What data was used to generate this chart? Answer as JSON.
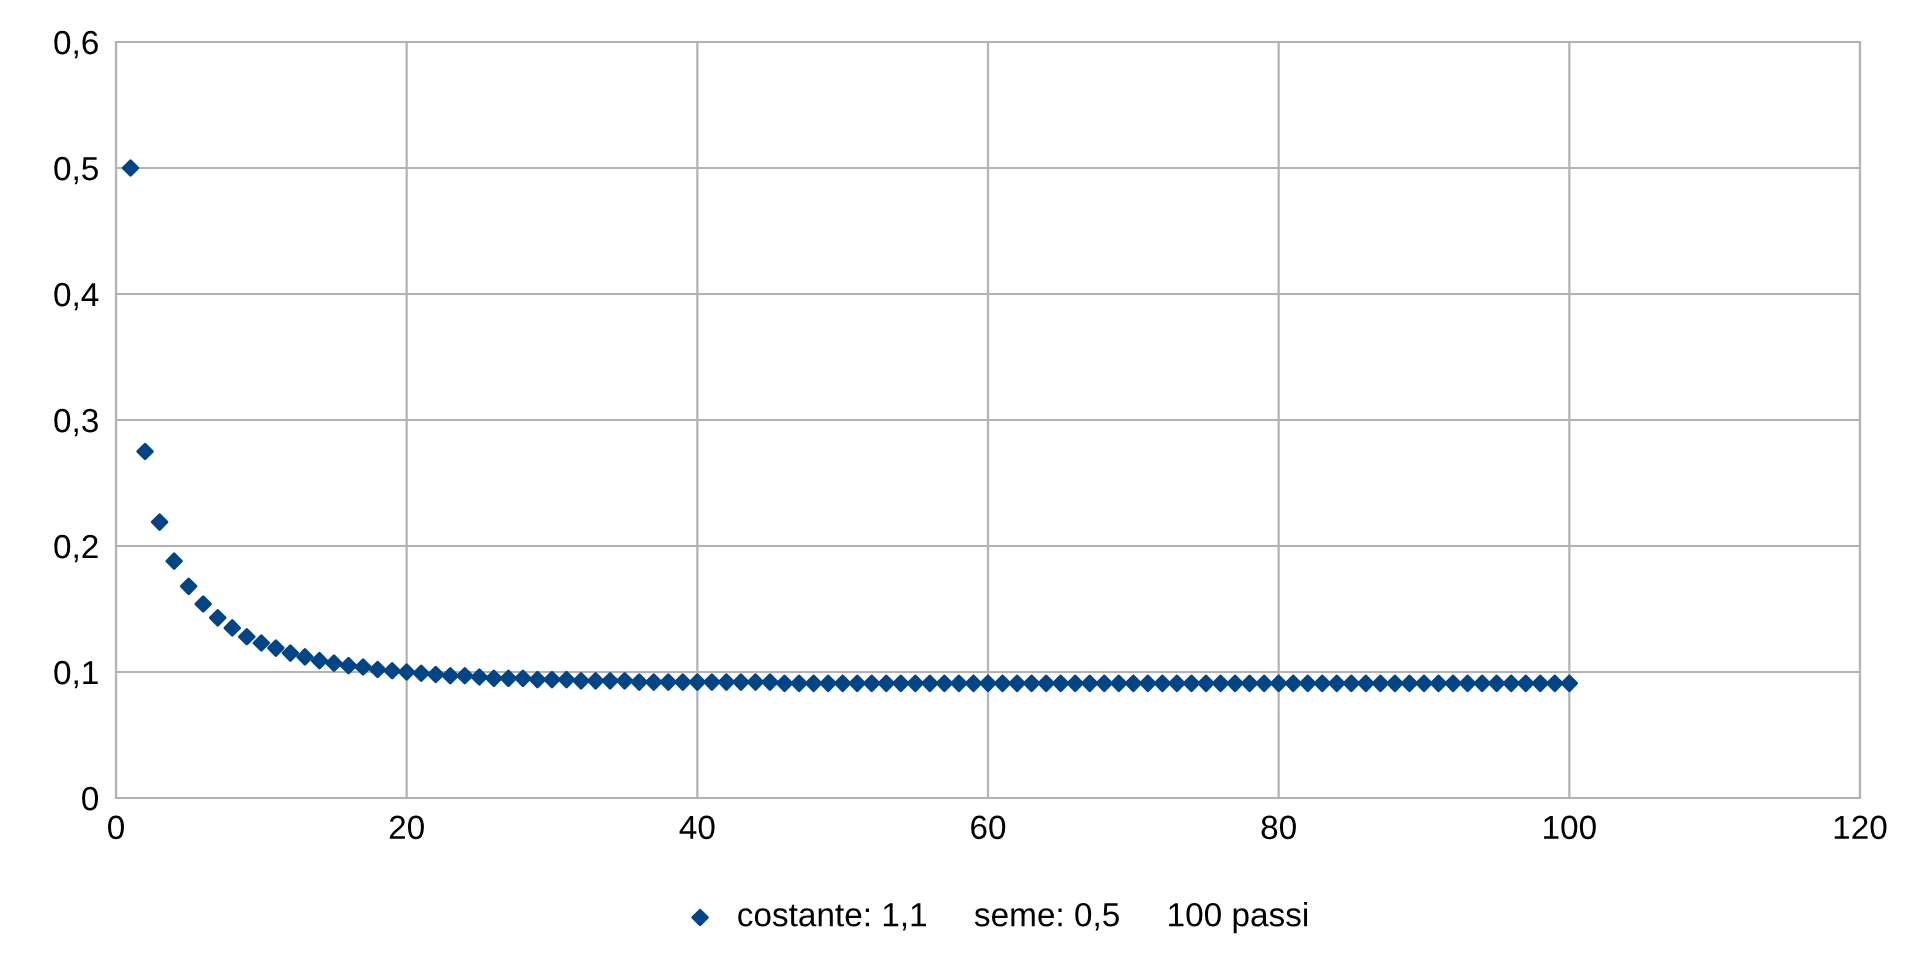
{
  "chart_data": {
    "type": "scatter",
    "x": [
      1,
      2,
      3,
      4,
      5,
      6,
      7,
      8,
      9,
      10,
      11,
      12,
      13,
      14,
      15,
      16,
      17,
      18,
      19,
      20,
      21,
      22,
      23,
      24,
      25,
      26,
      27,
      28,
      29,
      30,
      31,
      32,
      33,
      34,
      35,
      36,
      37,
      38,
      39,
      40,
      41,
      42,
      43,
      44,
      45,
      46,
      47,
      48,
      49,
      50,
      51,
      52,
      53,
      54,
      55,
      56,
      57,
      58,
      59,
      60,
      61,
      62,
      63,
      64,
      65,
      66,
      67,
      68,
      69,
      70,
      71,
      72,
      73,
      74,
      75,
      76,
      77,
      78,
      79,
      80,
      81,
      82,
      83,
      84,
      85,
      86,
      87,
      88,
      89,
      90,
      91,
      92,
      93,
      94,
      95,
      96,
      97,
      98,
      99,
      100
    ],
    "series": [
      {
        "name": "costante: 1,1     seme: 0,5     100 passi",
        "color": "#004586",
        "values": [
          0.5,
          0.275,
          0.219,
          0.188,
          0.168,
          0.154,
          0.143,
          0.135,
          0.128,
          0.123,
          0.119,
          0.115,
          0.112,
          0.109,
          0.107,
          0.105,
          0.104,
          0.102,
          0.101,
          0.1,
          0.099,
          0.098,
          0.097,
          0.097,
          0.096,
          0.095,
          0.095,
          0.095,
          0.094,
          0.094,
          0.094,
          0.093,
          0.093,
          0.093,
          0.093,
          0.092,
          0.092,
          0.092,
          0.092,
          0.092,
          0.092,
          0.092,
          0.092,
          0.092,
          0.092,
          0.091,
          0.091,
          0.091,
          0.091,
          0.091,
          0.091,
          0.091,
          0.091,
          0.091,
          0.091,
          0.091,
          0.091,
          0.091,
          0.091,
          0.091,
          0.091,
          0.091,
          0.091,
          0.091,
          0.091,
          0.091,
          0.091,
          0.091,
          0.091,
          0.091,
          0.091,
          0.091,
          0.091,
          0.091,
          0.091,
          0.091,
          0.091,
          0.091,
          0.091,
          0.091,
          0.091,
          0.091,
          0.091,
          0.091,
          0.091,
          0.091,
          0.091,
          0.091,
          0.091,
          0.091,
          0.091,
          0.091,
          0.091,
          0.091,
          0.091,
          0.091,
          0.091,
          0.091,
          0.091,
          0.091
        ]
      }
    ],
    "xlim": [
      0,
      120
    ],
    "xticks": [
      0,
      20,
      40,
      60,
      80,
      100,
      120
    ],
    "ylim": [
      0,
      0.6
    ],
    "yticks": [
      0,
      {
        "value": 0.1,
        "label": "0,1"
      },
      {
        "value": 0.2,
        "label": "0,2"
      },
      {
        "value": 0.3,
        "label": "0,3"
      },
      {
        "value": 0.4,
        "label": "0,4"
      },
      {
        "value": 0.5,
        "label": "0,5"
      },
      {
        "value": 0.6,
        "label": "0,6"
      }
    ],
    "grid": true,
    "legend": "bottom",
    "marker": "diamond"
  }
}
